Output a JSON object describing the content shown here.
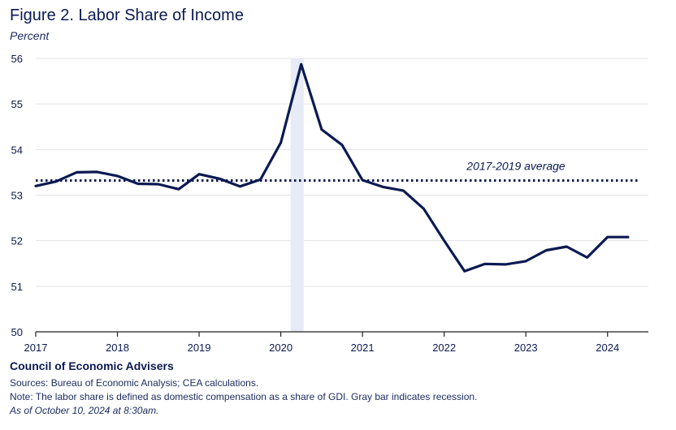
{
  "figure": {
    "title": "Figure 2. Labor Share of Income",
    "unit_label": "Percent"
  },
  "footer": {
    "organization": "Council of Economic Advisers",
    "sources": "Sources: Bureau of Economic Analysis; CEA calculations.",
    "note": "Note: The labor share is defined as domestic compensation as a share of GDI. Gray bar indicates recession.",
    "as_of": "As of October 10, 2024 at 8:30am."
  },
  "colors": {
    "series": "#0b1a52",
    "recession": "#e6ebf5",
    "grid": "#e3e3e3",
    "axis": "#222222",
    "text": "#0b1a52"
  },
  "chart_data": {
    "type": "line",
    "title": "Figure 2. Labor Share of Income",
    "ylabel": "Percent",
    "xlabel": "",
    "ylim": [
      50,
      56
    ],
    "yticks": [
      50,
      51,
      52,
      53,
      54,
      55,
      56
    ],
    "xlim": [
      2017,
      2024.5
    ],
    "xticks": [
      2017,
      2018,
      2019,
      2020,
      2021,
      2022,
      2023,
      2024
    ],
    "grid": "horizontal",
    "recession": {
      "start": 2020.12,
      "end": 2020.28
    },
    "average_line": {
      "label": "2017-2019 average",
      "value": 53.32
    },
    "series": [
      {
        "x": [
          2017.0,
          2017.25,
          2017.5,
          2017.75,
          2018.0,
          2018.25,
          2018.5,
          2018.75,
          2019.0,
          2019.25,
          2019.5,
          2019.75,
          2020.0,
          2020.25,
          2020.5,
          2020.75,
          2021.0,
          2021.25,
          2021.5,
          2021.75,
          2022.0,
          2022.25,
          2022.5,
          2022.75,
          2023.0,
          2023.25,
          2023.5,
          2023.75,
          2024.0,
          2024.25
        ],
        "y": [
          53.2,
          53.3,
          53.5,
          53.51,
          53.42,
          53.25,
          53.24,
          53.13,
          53.46,
          53.36,
          53.19,
          53.34,
          54.15,
          55.87,
          54.44,
          54.1,
          53.33,
          53.18,
          53.1,
          52.7,
          52.0,
          51.33,
          51.49,
          51.48,
          51.55,
          51.79,
          51.87,
          51.63,
          52.08,
          52.08
        ]
      }
    ]
  }
}
